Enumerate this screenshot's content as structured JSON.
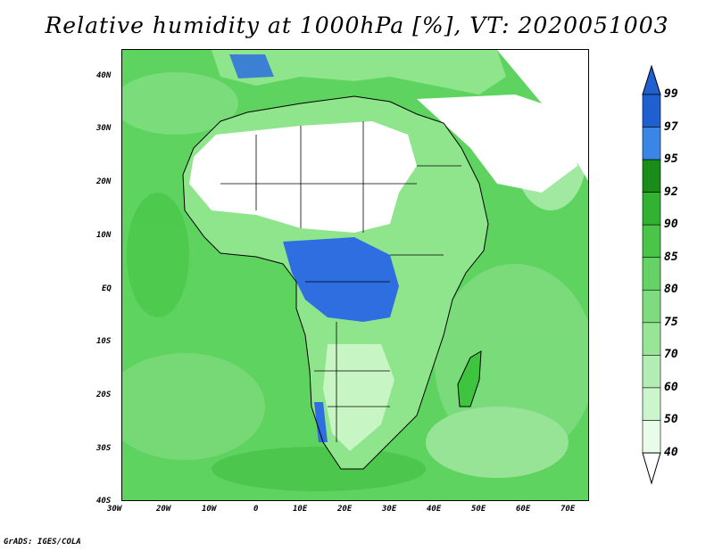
{
  "title": "Relative humidity at 1000hPa [%], VT: 2020051003",
  "credit": "GrADS: IGES/COLA",
  "map": {
    "lon_range": [
      -30,
      75
    ],
    "lat_range": [
      -40,
      45
    ],
    "lon_ticks": [
      "30W",
      "20W",
      "10W",
      "0",
      "10E",
      "20E",
      "30E",
      "40E",
      "50E",
      "60E",
      "70E"
    ],
    "lat_ticks": [
      "40N",
      "30N",
      "20N",
      "10N",
      "EQ",
      "10S",
      "20S",
      "30S",
      "40S"
    ],
    "ocean_color": "#5fd35f",
    "land_colors": {
      "desert": "#ffffff",
      "dry": "#c8f5c4",
      "moderate": "#8fe58c",
      "wet": "#3ec43e",
      "saturated": "#2e6ee0"
    }
  },
  "colorbar": {
    "labels": [
      "99",
      "97",
      "95",
      "92",
      "90",
      "85",
      "80",
      "75",
      "70",
      "60",
      "50",
      "40"
    ],
    "colors": [
      "#1f5fd0",
      "#3a86e6",
      "#1a8c1a",
      "#32b232",
      "#4ac54a",
      "#64d264",
      "#7edc7e",
      "#98e598",
      "#b4edb4",
      "#cdf5cd",
      "#e9fbe9"
    ],
    "max_arrow_color": "#1f5fd0",
    "min_arrow_color": "#ffffff"
  }
}
